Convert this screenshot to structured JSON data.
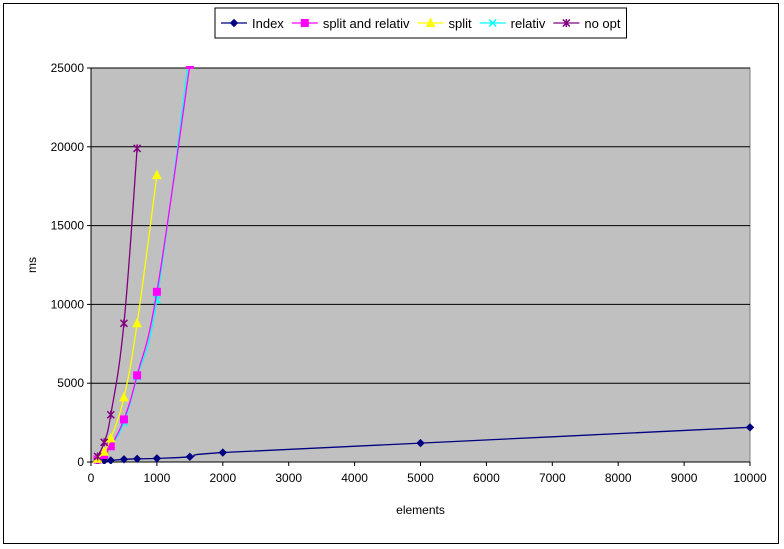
{
  "chart_data": {
    "type": "line",
    "title": "",
    "xlabel": "elements",
    "ylabel": "ms",
    "xlim": [
      0,
      10000
    ],
    "ylim": [
      0,
      25000
    ],
    "x_ticks": [
      "0",
      "1000",
      "2000",
      "3000",
      "4000",
      "5000",
      "6000",
      "7000",
      "8000",
      "9000",
      "10000"
    ],
    "y_ticks": [
      "0",
      "5000",
      "10000",
      "15000",
      "20000",
      "25000"
    ],
    "grid": "horizontal",
    "plot_background": "#c0c0c0",
    "legend_position": "top-center",
    "series": [
      {
        "name": "Index",
        "color": "#000080",
        "marker": "diamond",
        "points": [
          [
            100,
            60
          ],
          [
            200,
            80
          ],
          [
            300,
            100
          ],
          [
            500,
            170
          ],
          [
            700,
            200
          ],
          [
            1000,
            230
          ],
          [
            1500,
            330
          ],
          [
            2000,
            600
          ],
          [
            5000,
            1200
          ],
          [
            10000,
            2200
          ]
        ]
      },
      {
        "name": "split and relativ",
        "color": "#ff00ff",
        "marker": "square",
        "points": [
          [
            100,
            150
          ],
          [
            200,
            450
          ],
          [
            300,
            1000
          ],
          [
            500,
            2700
          ],
          [
            700,
            5500
          ],
          [
            1000,
            10800
          ],
          [
            1500,
            25200
          ]
        ]
      },
      {
        "name": "split",
        "color": "#ffff00",
        "marker": "triangle",
        "points": [
          [
            100,
            200
          ],
          [
            200,
            650
          ],
          [
            300,
            1500
          ],
          [
            500,
            4100
          ],
          [
            700,
            8800
          ],
          [
            1000,
            18200
          ]
        ]
      },
      {
        "name": "relativ",
        "color": "#00ffff",
        "marker": "x",
        "points": [
          [
            100,
            150
          ],
          [
            200,
            450
          ],
          [
            300,
            1000
          ],
          [
            500,
            2500
          ],
          [
            700,
            5400
          ],
          [
            1000,
            10300
          ],
          [
            1500,
            26200
          ]
        ]
      },
      {
        "name": "no opt",
        "color": "#800080",
        "marker": "asterisk",
        "points": [
          [
            100,
            350
          ],
          [
            200,
            1250
          ],
          [
            300,
            3000
          ],
          [
            500,
            8800
          ],
          [
            700,
            19900
          ]
        ]
      }
    ]
  }
}
